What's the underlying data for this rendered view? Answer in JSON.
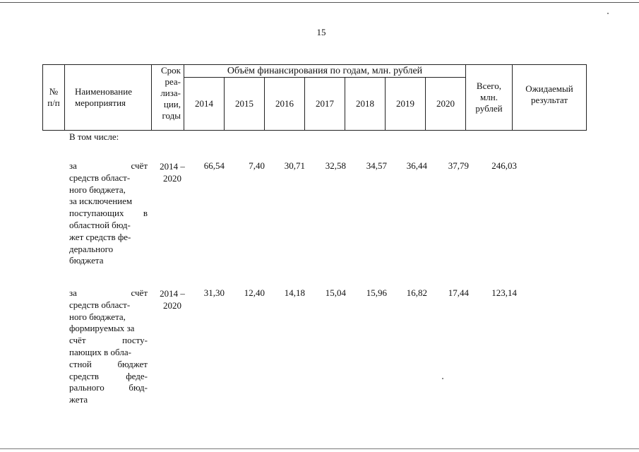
{
  "page_number": "15",
  "header": {
    "col_num": [
      "№",
      "п/п"
    ],
    "col_name": [
      "Наименование",
      "мероприятия"
    ],
    "col_term": [
      "Срок",
      "реа-",
      "лиза-",
      "ции,",
      "годы"
    ],
    "funding_heading": "Объём финансирования по годам, млн. рублей",
    "years": [
      "2014",
      "2015",
      "2016",
      "2017",
      "2018",
      "2019",
      "2020"
    ],
    "col_total": [
      "Всего,",
      "млн.",
      "рублей"
    ],
    "col_result": [
      "Ожидаемый",
      "результат"
    ]
  },
  "subheading": "В том числе:",
  "rows": [
    {
      "name_lines": [
        "за счёт",
        "средств област-",
        "ного бюджета,",
        "за исключением",
        "поступающих в",
        "областной бюд-",
        "жет средств фе-",
        "дерального",
        "бюджета"
      ],
      "term_lines": [
        "2014 –",
        "2020"
      ],
      "values": [
        "66,54",
        "7,40",
        "30,71",
        "32,58",
        "34,57",
        "36,44",
        "37,79"
      ],
      "total": "246,03"
    },
    {
      "name_lines": [
        "за счёт",
        "средств област-",
        "ного бюджета,",
        "формируемых за",
        "счёт посту-",
        "пающих в обла-",
        "стной бюджет",
        "средств феде-",
        "рального бюд-",
        "жета"
      ],
      "term_lines": [
        "2014 –",
        "2020"
      ],
      "values": [
        "31,30",
        "12,40",
        "14,18",
        "15,04",
        "15,96",
        "16,82",
        "17,44"
      ],
      "total": "123,14"
    }
  ]
}
